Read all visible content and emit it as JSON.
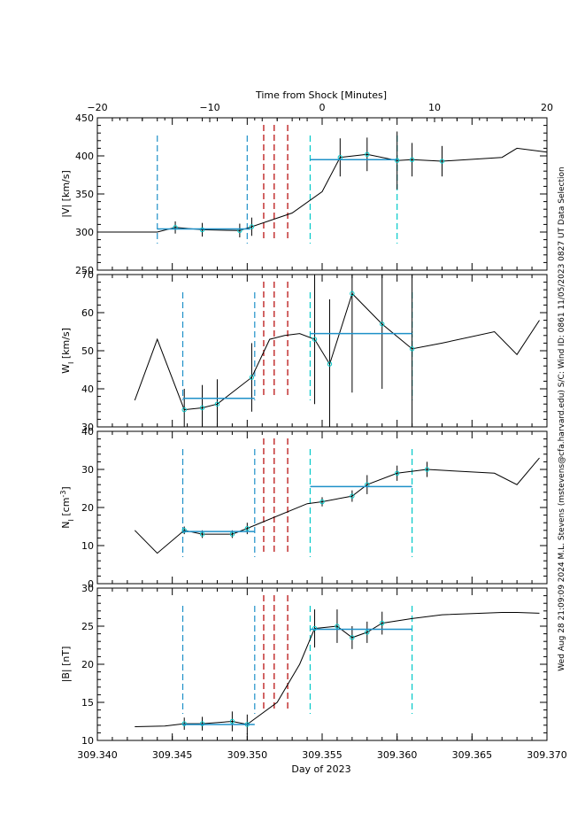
{
  "chart_data": {
    "type": "line",
    "top_axis": {
      "label": "Time from Shock [Minutes]",
      "ticks": [
        -20,
        -10,
        0,
        10,
        20
      ],
      "tick_labels": [
        "−20",
        "−10",
        "0",
        "10",
        "20"
      ],
      "range": [
        -20,
        20
      ]
    },
    "bottom_axis": {
      "label": "Day of 2023",
      "ticks": [
        309.34,
        309.345,
        309.35,
        309.355,
        309.36,
        309.365,
        309.37
      ],
      "tick_labels": [
        "309.340",
        "309.345",
        "309.350",
        "309.355",
        "309.360",
        "309.365",
        "309.370"
      ],
      "range": [
        309.34,
        309.37
      ]
    },
    "side_text": "Wed Aug 28 21:09:09 2024   M.L. Stevens (mstevens@cfa.harvard.edu)   S/C: Wind ID: 0861 11/05/2023   0827 UT Data Selection",
    "colors": {
      "line": "#000000",
      "fit": "#1e90c8",
      "window": "#1e90c8",
      "window2": "#00c8c8",
      "shock": "#b40000"
    },
    "red_lines_x": [
      309.3511,
      309.3518,
      309.3527
    ],
    "panels": [
      {
        "id": "v",
        "ylabel": "|V| [km/s]",
        "ylim": [
          250,
          450
        ],
        "yticks": [
          250,
          300,
          350,
          400,
          450
        ],
        "blue_lines_x": [
          309.344,
          309.35
        ],
        "cyan_lines_x": [
          309.3542,
          309.36
        ],
        "series": {
          "x": [
            309.34,
            309.3425,
            309.344,
            309.3452,
            309.347,
            309.3495,
            309.3503,
            309.353,
            309.355,
            309.3562,
            309.358,
            309.36,
            309.361,
            309.363,
            309.367,
            309.368,
            309.37
          ],
          "y": [
            300,
            300,
            300,
            306,
            303,
            302,
            307,
            325,
            353,
            398,
            402,
            394,
            395,
            393,
            398,
            410,
            405
          ]
        },
        "points": {
          "x": [
            309.3452,
            309.347,
            309.3495,
            309.3503,
            309.3562,
            309.358,
            309.36,
            309.361,
            309.363
          ],
          "y": [
            306,
            303,
            302,
            307,
            398,
            402,
            394,
            395,
            393
          ],
          "err": [
            8,
            9,
            9,
            12,
            25,
            22,
            38,
            22,
            20
          ]
        },
        "fits": [
          {
            "x": [
              309.344,
              309.3502
            ],
            "y": 304
          },
          {
            "x": [
              309.3542,
              309.36
            ],
            "y": 395
          }
        ]
      },
      {
        "id": "w",
        "ylabel": "W_I [km/s]",
        "ylim": [
          30,
          70
        ],
        "yticks": [
          30,
          40,
          50,
          60,
          70
        ],
        "blue_lines_x": [
          309.3457,
          309.3505
        ],
        "cyan_lines_x": [
          309.3542,
          309.361
        ],
        "series": {
          "x": [
            309.3425,
            309.344,
            309.3458,
            309.347,
            309.348,
            309.3503,
            309.3515,
            309.3525,
            309.3535,
            309.3545,
            309.3555,
            309.357,
            309.359,
            309.361,
            309.363,
            309.3665,
            309.368,
            309.3695
          ],
          "y": [
            37,
            53,
            34.5,
            35,
            36,
            43,
            53,
            54,
            54.5,
            53,
            46.5,
            65,
            57,
            50.5,
            52,
            55,
            49,
            58
          ]
        },
        "points": {
          "x": [
            309.3458,
            309.347,
            309.348,
            309.3503,
            309.3545,
            309.3555,
            309.357,
            309.359,
            309.361
          ],
          "y": [
            34.5,
            35,
            36,
            43,
            53,
            46.5,
            65,
            57,
            50.5
          ],
          "err": [
            5.5,
            6,
            6.5,
            9,
            17,
            17,
            26,
            17,
            21
          ]
        },
        "fits": [
          {
            "x": [
              309.3457,
              309.3505
            ],
            "y": 37.5
          },
          {
            "x": [
              309.3542,
              309.361
            ],
            "y": 54.5
          }
        ]
      },
      {
        "id": "n",
        "ylabel": "N_I [cm^-3]",
        "ylim": [
          0,
          40
        ],
        "yticks": [
          0,
          10,
          20,
          30,
          40
        ],
        "blue_lines_x": [
          309.3457,
          309.3505
        ],
        "cyan_lines_x": [
          309.3542,
          309.361
        ],
        "series": {
          "x": [
            309.3425,
            309.344,
            309.3458,
            309.347,
            309.349,
            309.35,
            309.354,
            309.355,
            309.357,
            309.358,
            309.36,
            309.362,
            309.3665,
            309.368,
            309.3695
          ],
          "y": [
            14,
            8,
            14,
            13,
            13,
            14.5,
            21,
            21.5,
            23,
            26,
            29,
            30,
            29,
            26,
            33
          ]
        },
        "points": {
          "x": [
            309.3458,
            309.347,
            309.349,
            309.35,
            309.355,
            309.357,
            309.358,
            309.36,
            309.362
          ],
          "y": [
            14,
            13,
            13,
            14.5,
            21.5,
            23,
            26,
            29,
            30
          ],
          "err": [
            1,
            1,
            1,
            1.5,
            1.2,
            1.5,
            2.5,
            2,
            2
          ]
        },
        "fits": [
          {
            "x": [
              309.3457,
              309.3505
            ],
            "y": 13.7
          },
          {
            "x": [
              309.3542,
              309.361
            ],
            "y": 25.5
          }
        ]
      },
      {
        "id": "b",
        "ylabel": "|B| [nT]",
        "ylim": [
          10,
          30
        ],
        "yticks": [
          10,
          15,
          20,
          25,
          30
        ],
        "blue_lines_x": [
          309.3457,
          309.3505
        ],
        "cyan_lines_x": [
          309.3542,
          309.361
        ],
        "series": {
          "x": [
            309.3425,
            309.3445,
            309.3458,
            309.347,
            309.349,
            309.35,
            309.352,
            309.3535,
            309.3545,
            309.356,
            309.357,
            309.358,
            309.359,
            309.361,
            309.363,
            309.367,
            309.368,
            309.3695
          ],
          "y": [
            11.8,
            11.9,
            12.2,
            12.2,
            12.5,
            12.1,
            15,
            20,
            24.7,
            25,
            23.5,
            24.2,
            25.4,
            26,
            26.5,
            26.8,
            26.8,
            26.7
          ]
        },
        "points": {
          "x": [
            309.3458,
            309.347,
            309.349,
            309.35,
            309.3545,
            309.356,
            309.357,
            309.358,
            309.359
          ],
          "y": [
            12.2,
            12.2,
            12.5,
            12.1,
            24.7,
            25,
            23.5,
            24.2,
            25.4
          ],
          "err": [
            0.8,
            0.9,
            1.3,
            1.3,
            2.5,
            2.2,
            1.5,
            1.4,
            1.5
          ]
        },
        "fits": [
          {
            "x": [
              309.3457,
              309.3505
            ],
            "y": 12.1
          },
          {
            "x": [
              309.3542,
              309.361
            ],
            "y": 24.6
          }
        ]
      }
    ]
  }
}
